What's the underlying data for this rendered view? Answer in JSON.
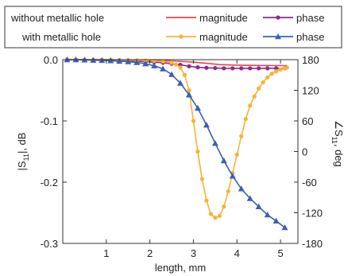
{
  "chart_data": {
    "type": "line",
    "xlabel": "length, mm",
    "ylabel_main": "|S",
    "ylabel_sub": "11",
    "ylabel_end": "|, dB",
    "y2label_main": "∠S",
    "y2label_sub": "11",
    "y2label_end": ", deg",
    "xlim": [
      0,
      5.4
    ],
    "ylim": [
      -0.3,
      0.0
    ],
    "y2lim": [
      -180,
      180
    ],
    "x_ticks": [
      1,
      2,
      3,
      4,
      5
    ],
    "y_ticks": [
      0.0,
      -0.1,
      -0.2,
      -0.3
    ],
    "y_tick_labels": [
      "0.0",
      "-0.1",
      "-0.2",
      "-0.3"
    ],
    "y2_ticks": [
      180,
      120,
      60,
      0,
      -60,
      -120,
      -180
    ],
    "y2_tick_labels": [
      "180",
      "120",
      "60",
      "0",
      "-60",
      "-120",
      "-180"
    ],
    "legend": {
      "placement": "top",
      "row_labels": [
        "without metallic hole",
        "with metallic hole"
      ],
      "entries": [
        {
          "label": "magnitude",
          "row": 0,
          "col": 0,
          "color": "#e8454b",
          "marker": "none"
        },
        {
          "label": "phase",
          "row": 0,
          "col": 1,
          "color": "#93278f",
          "marker": "circle"
        },
        {
          "label": "magnitude",
          "row": 1,
          "col": 0,
          "color": "#f7b334",
          "marker": "circle"
        },
        {
          "label": "phase",
          "row": 1,
          "col": 1,
          "color": "#3a5fb5",
          "marker": "triangle"
        }
      ]
    },
    "series": [
      {
        "id": "without-magnitude",
        "axis": "left",
        "color": "#e8454b",
        "marker": "none",
        "x": [
          0.1,
          0.5,
          1.0,
          1.5,
          2.0,
          2.5,
          3.0,
          3.3,
          3.6,
          4.0,
          4.5,
          5.0,
          5.15
        ],
        "y": [
          0.0,
          0.0,
          0.0,
          -0.0005,
          -0.001,
          -0.002,
          -0.004,
          -0.006,
          -0.008,
          -0.009,
          -0.0095,
          -0.0098,
          -0.0098
        ]
      },
      {
        "id": "without-phase",
        "axis": "right",
        "color": "#93278f",
        "marker": "circle",
        "x": [
          0.1,
          0.3,
          0.5,
          0.7,
          0.9,
          1.1,
          1.3,
          1.5,
          1.7,
          1.9,
          2.1,
          2.3,
          2.5,
          2.7,
          2.9,
          3.1,
          3.3,
          3.5,
          3.7,
          3.9,
          4.1,
          4.3,
          4.5,
          4.7,
          4.9,
          5.1
        ],
        "y": [
          180,
          180,
          180,
          179.5,
          179,
          178.5,
          178,
          177.5,
          177,
          176,
          175,
          174,
          172,
          170,
          167,
          165,
          164,
          163.5,
          163,
          163,
          163,
          163,
          163,
          163,
          163,
          163
        ]
      },
      {
        "id": "with-magnitude",
        "axis": "left",
        "color": "#f7b334",
        "marker": "circle",
        "x": [
          0.1,
          0.3,
          0.5,
          0.7,
          0.9,
          1.1,
          1.3,
          1.5,
          1.7,
          1.9,
          2.1,
          2.3,
          2.5,
          2.6,
          2.7,
          2.8,
          2.9,
          3.0,
          3.1,
          3.2,
          3.3,
          3.4,
          3.5,
          3.6,
          3.7,
          3.8,
          3.9,
          4.0,
          4.1,
          4.2,
          4.3,
          4.4,
          4.5,
          4.6,
          4.7,
          4.8,
          4.9,
          5.0,
          5.1,
          5.15
        ],
        "y": [
          0.0,
          0.0,
          0.0,
          0.0,
          0.0,
          0.0,
          -0.0005,
          -0.0005,
          -0.001,
          -0.0015,
          -0.002,
          -0.003,
          -0.005,
          -0.008,
          -0.013,
          -0.025,
          -0.05,
          -0.1,
          -0.15,
          -0.195,
          -0.23,
          -0.252,
          -0.258,
          -0.255,
          -0.24,
          -0.215,
          -0.185,
          -0.155,
          -0.125,
          -0.097,
          -0.075,
          -0.06,
          -0.047,
          -0.037,
          -0.029,
          -0.023,
          -0.019,
          -0.016,
          -0.014,
          -0.013
        ]
      },
      {
        "id": "with-phase",
        "axis": "right",
        "color": "#3a5fb5",
        "marker": "triangle",
        "x": [
          0.1,
          0.3,
          0.5,
          0.7,
          0.9,
          1.1,
          1.3,
          1.5,
          1.7,
          1.9,
          2.1,
          2.3,
          2.5,
          2.7,
          2.9,
          3.1,
          3.3,
          3.5,
          3.7,
          3.9,
          4.1,
          4.3,
          4.5,
          4.7,
          4.9,
          5.1
        ],
        "y": [
          180,
          180,
          179.5,
          179,
          178.5,
          178,
          177,
          176,
          174.5,
          172,
          168,
          162,
          151,
          134,
          111,
          85,
          52,
          16,
          -18,
          -48,
          -73,
          -92,
          -108,
          -124,
          -136,
          -149
        ]
      }
    ]
  }
}
